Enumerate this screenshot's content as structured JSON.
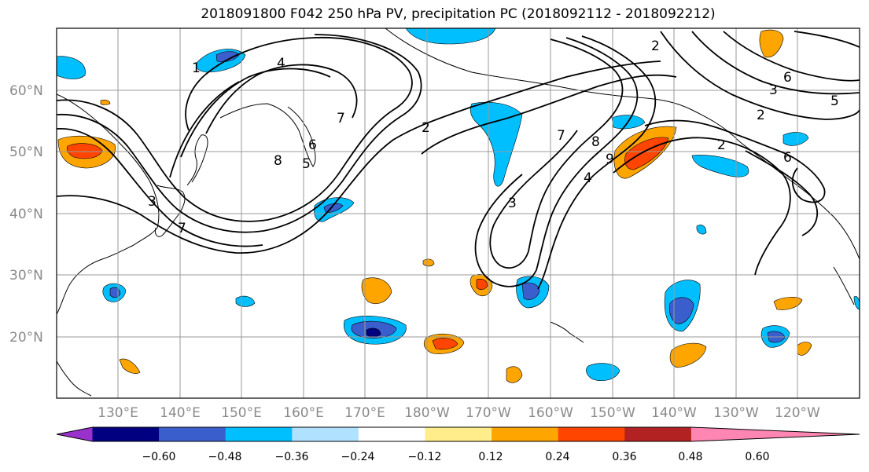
{
  "title": "2018091800 F042 250 hPa PV, precipitation PC (2018092112 - 2018092212)",
  "lat_labels": [
    "60°N",
    "50°N",
    "40°N",
    "30°N",
    "20°N"
  ],
  "lon_labels": [
    "130°E",
    "140°E",
    "150°E",
    "160°E",
    "170°E",
    "180°W",
    "170°W",
    "160°W",
    "150°W",
    "140°W",
    "130°W",
    "120°W"
  ],
  "colorbar": {
    "tick_labels": [
      "−0.60",
      "−0.48",
      "−0.36",
      "−0.24",
      "−0.12",
      "0.12",
      "0.24",
      "0.36",
      "0.48",
      "0.60"
    ],
    "colors": [
      "#9932cc",
      "#000080",
      "#3a5fcd",
      "#00bfff",
      "#b0e2ff",
      "#ffffff",
      "#ffec8b",
      "#ffa500",
      "#ff4500",
      "#b22222",
      "#ff86b3"
    ]
  },
  "contour_labels": [
    "4",
    "7",
    "1",
    "8",
    "5",
    "6",
    "3",
    "7",
    "2",
    "2",
    "7",
    "8",
    "4",
    "3",
    "2",
    "5",
    "6",
    "3",
    "2",
    "6",
    "9"
  ]
}
